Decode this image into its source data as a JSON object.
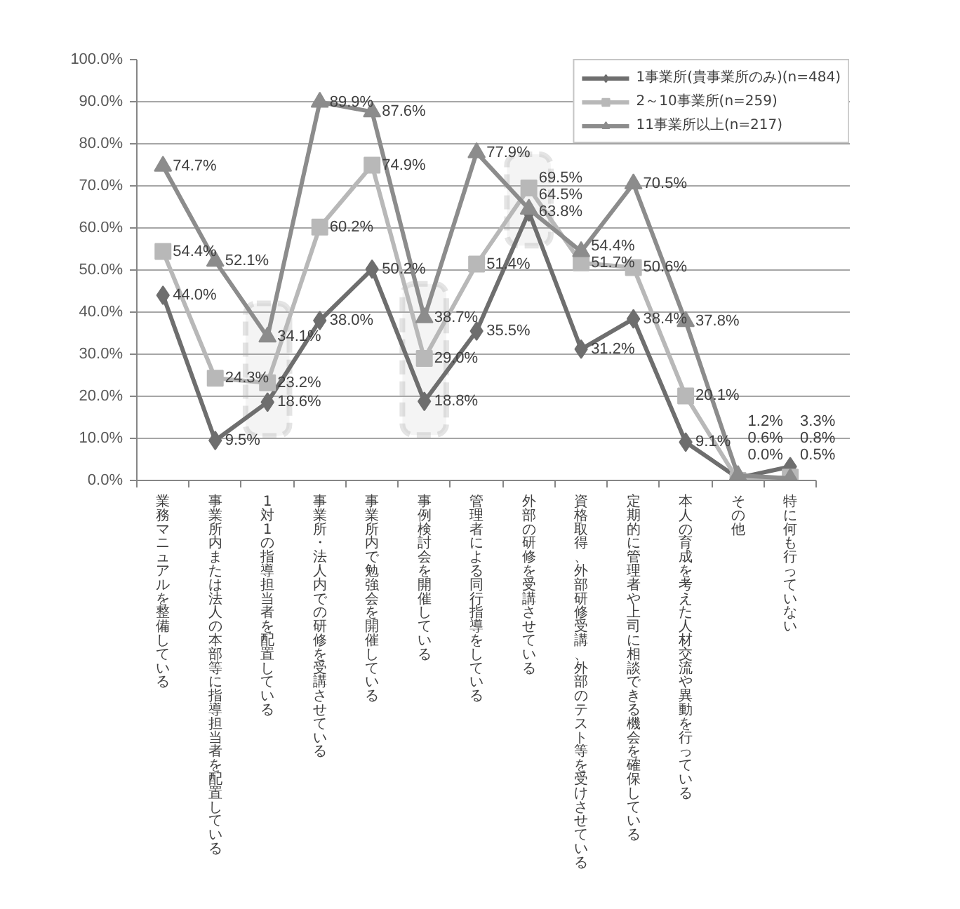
{
  "chart_data": {
    "type": "line",
    "categories": [
      "業務マニュアルを整備している",
      "事業所内または法人の本部等に指導担当者を配置している",
      "1対1の指導担当者を配置している",
      "事業所・法人内での研修を受講させている",
      "事業所内で勉強会を開催している",
      "事例検討会を開催している",
      "管理者による同行指導をしている",
      "外部の研修を受講させている",
      "資格取得、外部研修受講、外部のテスト等を受けさせている",
      "定期的に管理者や上司に相談できる機会を確保している",
      "本人の育成を考えた人材交流や異動を行っている",
      "その他",
      "特に何も行っていない"
    ],
    "series": [
      {
        "name": "1事業所(貴事業所のみ)(n=484)",
        "color": "#6e6e6e",
        "marker": "diamond",
        "values": [
          44.0,
          9.5,
          18.6,
          38.0,
          50.2,
          18.8,
          35.5,
          63.8,
          31.2,
          38.4,
          9.1,
          0.6,
          3.3
        ],
        "value_labels": [
          "44.0%",
          "9.5%",
          "18.6%",
          "38.0%",
          "50.2%",
          "18.8%",
          "35.5%",
          "63.8%",
          "31.2%",
          "38.4%",
          "9.1%",
          "0.6%",
          "3.3%"
        ]
      },
      {
        "name": "2～10事業所(n=259)",
        "color": "#b8b8b8",
        "marker": "square",
        "values": [
          54.4,
          24.3,
          23.2,
          60.2,
          74.9,
          29.0,
          51.4,
          69.5,
          51.7,
          50.6,
          20.1,
          0.0,
          0.8
        ],
        "value_labels": [
          "54.4%",
          "24.3%",
          "23.2%",
          "60.2%",
          "74.9%",
          "29.0%",
          "51.4%",
          "69.5%",
          "51.7%",
          "50.6%",
          "20.1%",
          "0.0%",
          "0.8%"
        ]
      },
      {
        "name": "11事業所以上(n=217)",
        "color": "#8c8c8c",
        "marker": "triangle",
        "values": [
          74.7,
          52.1,
          34.1,
          89.9,
          87.6,
          38.7,
          77.9,
          64.5,
          54.4,
          70.5,
          37.8,
          1.2,
          0.5
        ],
        "value_labels": [
          "74.7%",
          "52.1%",
          "34.1%",
          "89.9%",
          "87.6%",
          "38.7%",
          "77.9%",
          "64.5%",
          "54.4%",
          "70.5%",
          "37.8%",
          "1.2%",
          "0.5%"
        ]
      }
    ],
    "ylim": [
      0,
      100
    ],
    "yticks": [
      {
        "value": 0,
        "label": "0.0%"
      },
      {
        "value": 10,
        "label": "10.0%"
      },
      {
        "value": 20,
        "label": "20.0%"
      },
      {
        "value": 30,
        "label": "30.0%"
      },
      {
        "value": 40,
        "label": "40.0%"
      },
      {
        "value": 50,
        "label": "50.0%"
      },
      {
        "value": 60,
        "label": "60.0%"
      },
      {
        "value": 70,
        "label": "70.0%"
      },
      {
        "value": 80,
        "label": "80.0%"
      },
      {
        "value": 90,
        "label": "90.0%"
      },
      {
        "value": 100,
        "label": "100.0%"
      }
    ],
    "grid": "y",
    "legend": "top right",
    "line_style": "solid",
    "bands": [
      {
        "axis": "x",
        "from": "1対1の指導担当者を配置している",
        "to": "1対1の指導担当者を配置している",
        "color": "#a6a6a6"
      },
      {
        "axis": "x",
        "from": "事例検討会を開催している",
        "to": "事例検討会を開催している",
        "color": "#a6a6a6"
      },
      {
        "axis": "x",
        "from": "外部の研修を受講させている",
        "to": "外部の研修を受講させている",
        "color": "#a6a6a6"
      }
    ]
  }
}
